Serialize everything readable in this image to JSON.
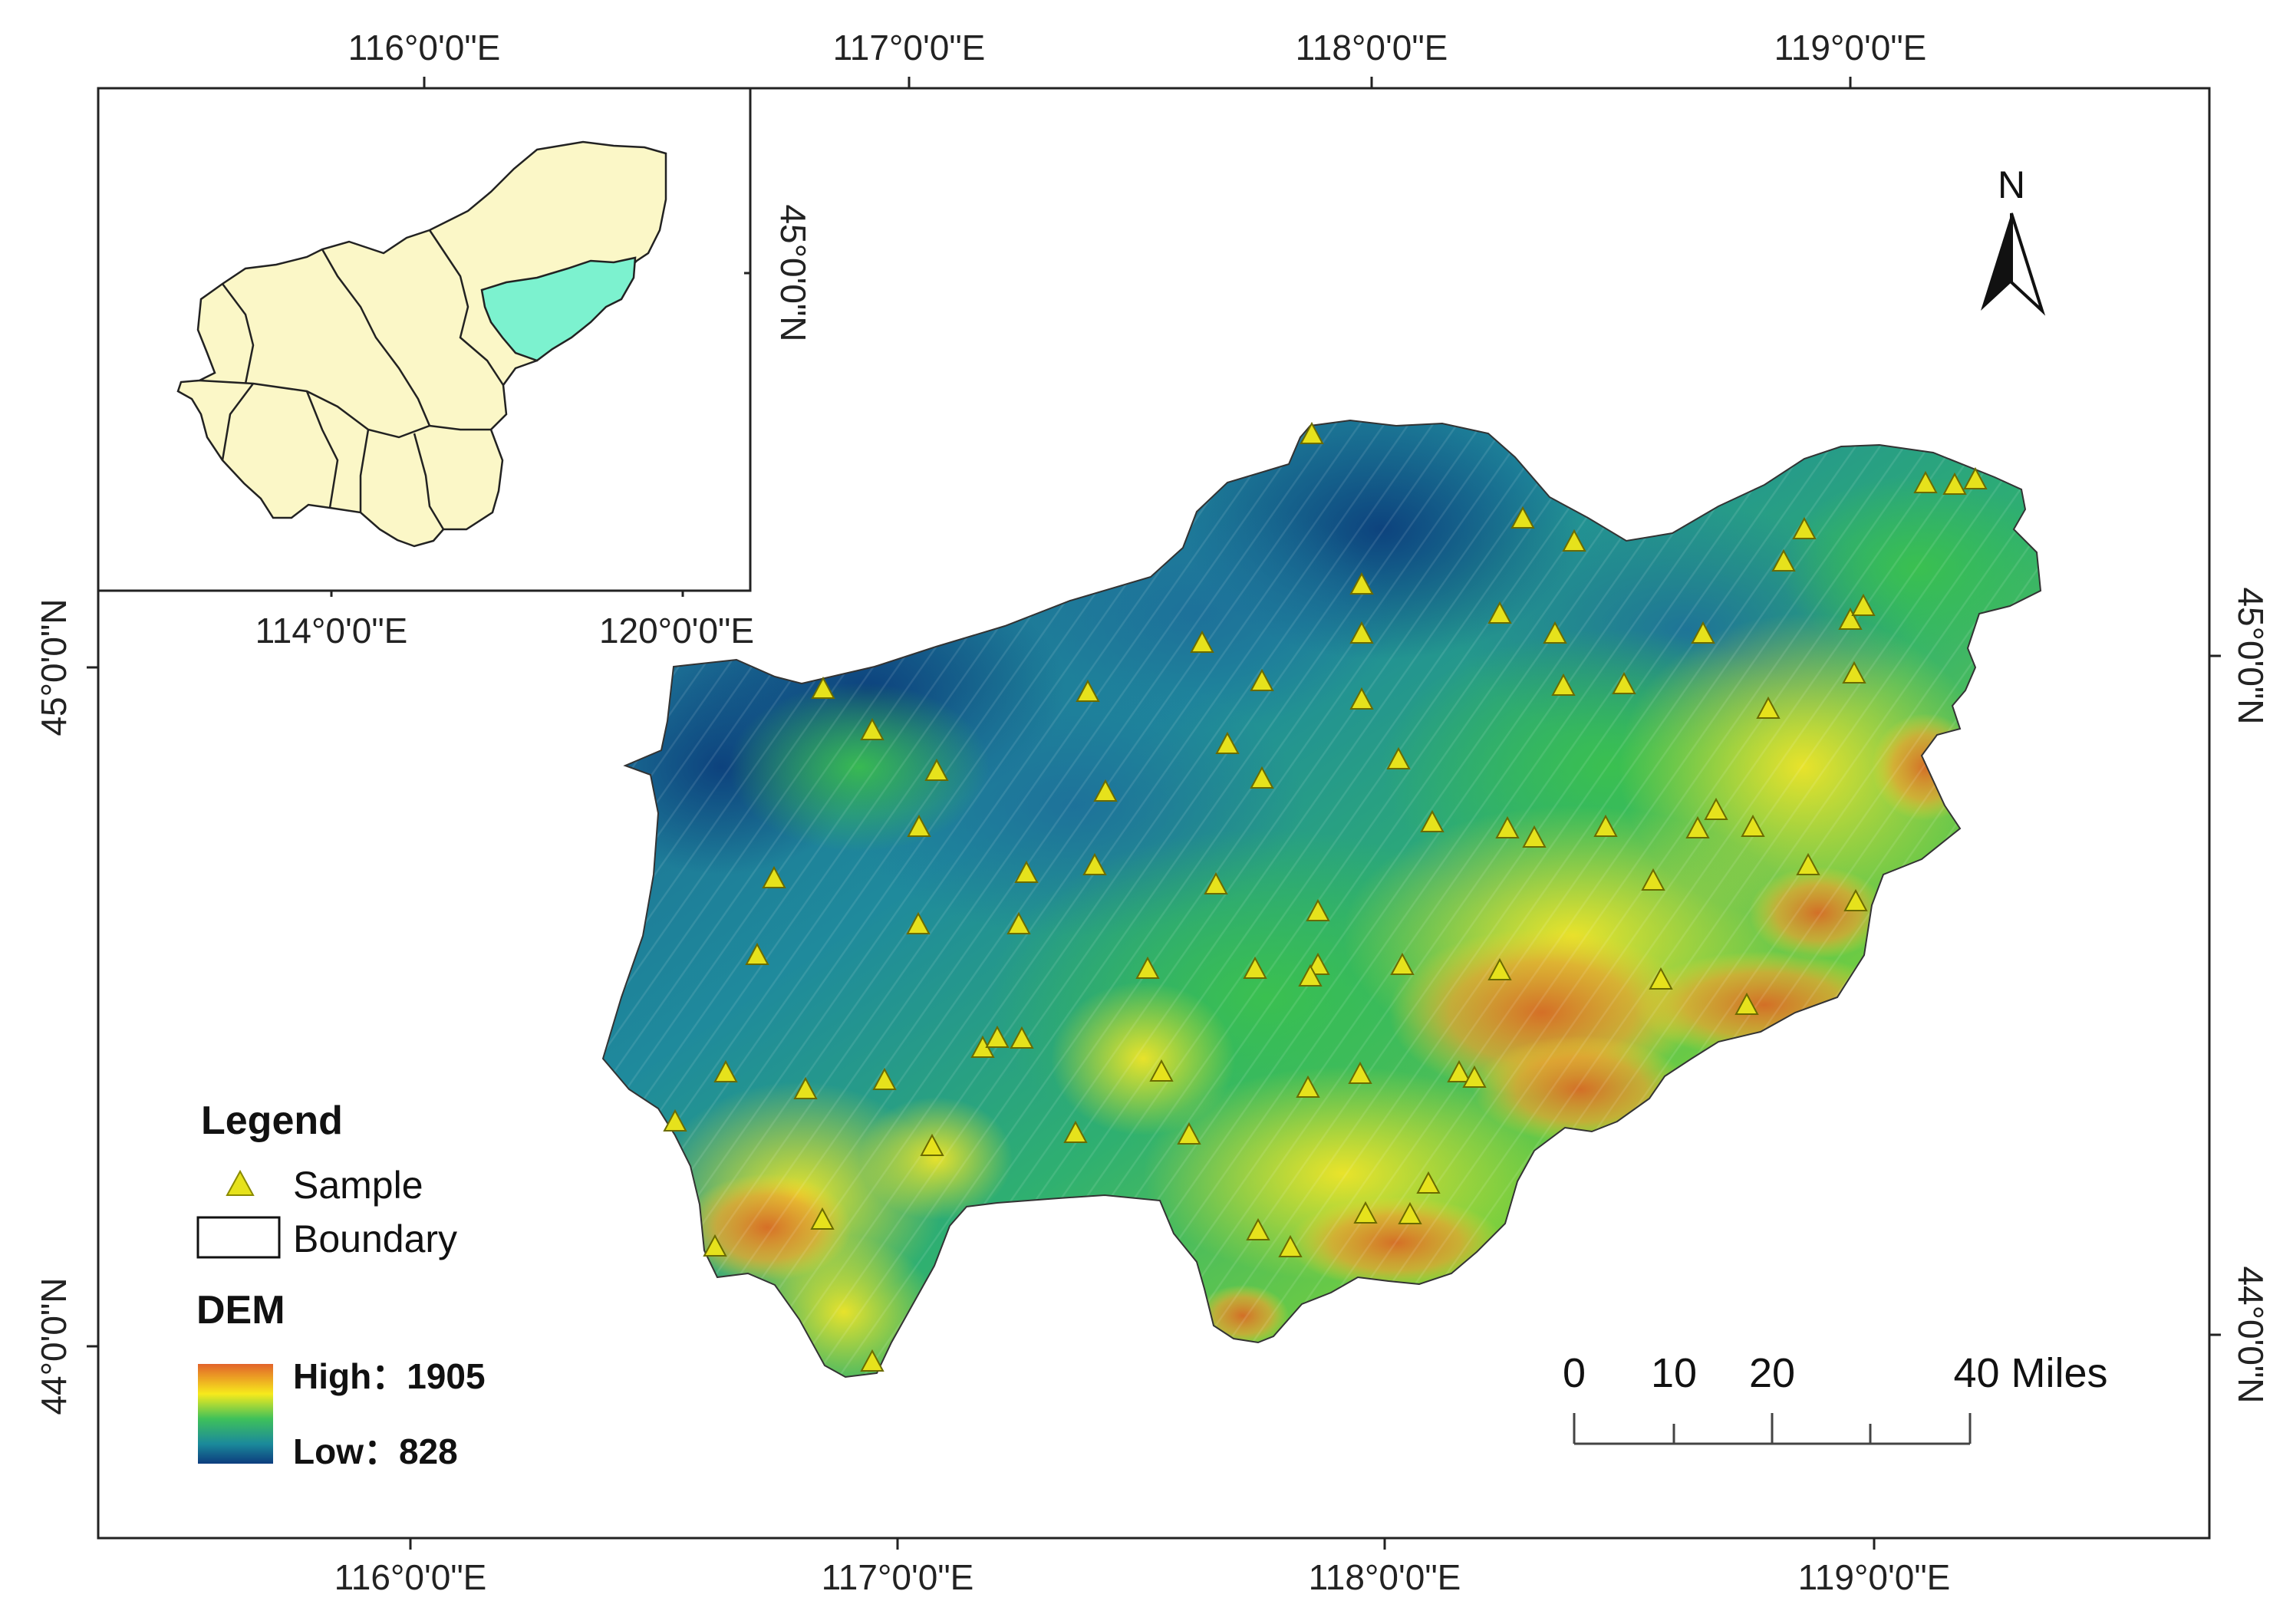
{
  "top_lon_labels": [
    "116°0'0\"E",
    "117°0'0\"E",
    "118°0'0\"E",
    "119°0'0\"E"
  ],
  "bottom_lon_labels": [
    "116°0'0\"E",
    "117°0'0\"E",
    "118°0'0\"E",
    "119°0'0\"E"
  ],
  "left_lat_labels": [
    "45°0'0\"N",
    "44°0'0\"N"
  ],
  "right_lat_labels": [
    "45°0'0\"N",
    "44°0'0\"N"
  ],
  "inset": {
    "lat_label": "45°0'0\"N",
    "lon_labels": [
      "114°0'0\"E",
      "120°0'0\"E"
    ],
    "colors": {
      "region": "#fbf7c7",
      "highlight": "#7cf2cf"
    }
  },
  "north_arrow": {
    "label": "N"
  },
  "legend": {
    "title": "Legend",
    "sample_label": "Sample",
    "boundary_label": "Boundary",
    "dem_title": "DEM",
    "high_label": "High：1905",
    "low_label": "Low：828",
    "ramp_colors": [
      "#e2632a",
      "#f7ea1c",
      "#3fc15a",
      "#1b8a9b",
      "#0d3c7e"
    ]
  },
  "scale_bar": {
    "labels": [
      "0",
      "10",
      "20",
      "40 Miles"
    ]
  },
  "dem_range": {
    "high": 1905,
    "low": 828
  },
  "samples_count": 80,
  "marker_color": "#e6e21c"
}
